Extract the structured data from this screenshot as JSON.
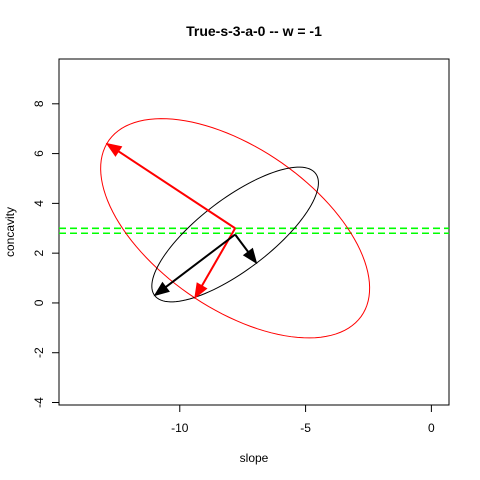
{
  "chart_data": {
    "type": "scatter",
    "title": "True-s-3-a-0  -- w = -1",
    "xlabel": "slope",
    "ylabel": "concavity",
    "xlim": [
      -14.8,
      0.7
    ],
    "ylim": [
      -4.1,
      9.8
    ],
    "x_ticks": [
      -10,
      -5,
      0
    ],
    "x_tick_labels": [
      "-10",
      "-5",
      "0"
    ],
    "y_ticks": [
      -4,
      -2,
      0,
      2,
      4,
      6,
      8
    ],
    "y_tick_labels": [
      "-4",
      "-2",
      "0",
      "2",
      "4",
      "6",
      "8"
    ],
    "grid": false,
    "ellipses": [
      {
        "name": "",
        "color": "#ff0000",
        "center": [
          -7.8,
          3.0
        ],
        "axis1_end": [
          -12.9,
          6.4
        ],
        "axis2_end": [
          -9.4,
          0.2
        ]
      },
      {
        "name": "",
        "color": "#000000",
        "center": [
          -7.8,
          2.75
        ],
        "axis1_end": [
          -11.0,
          0.3
        ],
        "axis2_end": [
          -6.95,
          1.6
        ]
      }
    ],
    "arrows": [
      {
        "color": "#ff0000",
        "from": [
          -7.8,
          3.0
        ],
        "to": [
          -12.9,
          6.4
        ]
      },
      {
        "color": "#ff0000",
        "from": [
          -7.8,
          3.0
        ],
        "to": [
          -9.4,
          0.2
        ]
      },
      {
        "color": "#000000",
        "from": [
          -7.8,
          2.75
        ],
        "to": [
          -11.0,
          0.3
        ]
      },
      {
        "color": "#000000",
        "from": [
          -7.8,
          2.75
        ],
        "to": [
          -6.95,
          1.6
        ]
      }
    ],
    "hlines": [
      {
        "y": 3.0,
        "color": "#00ff00",
        "style": "dashed"
      },
      {
        "y": 2.8,
        "color": "#00ff00",
        "style": "dashed"
      }
    ]
  }
}
